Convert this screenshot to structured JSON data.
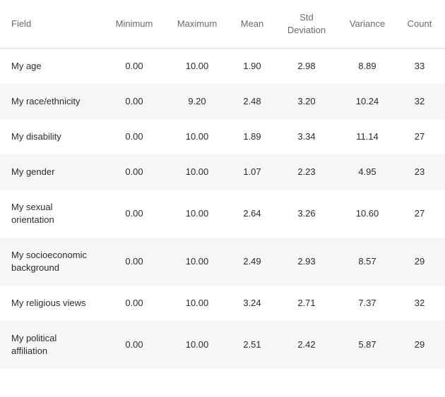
{
  "table": {
    "columns": [
      "Field",
      "Minimum",
      "Maximum",
      "Mean",
      "Std Deviation",
      "Variance",
      "Count"
    ],
    "rows": [
      [
        "My age",
        "0.00",
        "10.00",
        "1.90",
        "2.98",
        "8.89",
        "33"
      ],
      [
        "My race/ethnicity",
        "0.00",
        "9.20",
        "2.48",
        "3.20",
        "10.24",
        "32"
      ],
      [
        "My disability",
        "0.00",
        "10.00",
        "1.89",
        "3.34",
        "11.14",
        "27"
      ],
      [
        "My gender",
        "0.00",
        "10.00",
        "1.07",
        "2.23",
        "4.95",
        "23"
      ],
      [
        "My sexual orientation",
        "0.00",
        "10.00",
        "2.64",
        "3.26",
        "10.60",
        "27"
      ],
      [
        "My socioeconomic background",
        "0.00",
        "10.00",
        "2.49",
        "2.93",
        "8.57",
        "29"
      ],
      [
        "My religious views",
        "0.00",
        "10.00",
        "3.24",
        "2.71",
        "7.37",
        "32"
      ],
      [
        "My political affiliation",
        "0.00",
        "10.00",
        "2.51",
        "2.42",
        "5.87",
        "29"
      ]
    ]
  }
}
